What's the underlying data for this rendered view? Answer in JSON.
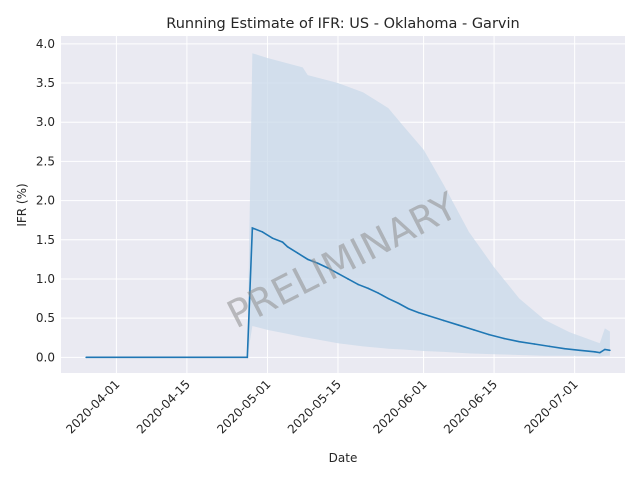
{
  "chart_data": {
    "type": "line",
    "title": "Running Estimate of IFR: US - Oklahoma - Garvin",
    "xlabel": "Date",
    "ylabel": "IFR (%)",
    "x_range": [
      "2020-03-21",
      "2020-07-11"
    ],
    "ylim": [
      -0.2,
      4.1
    ],
    "grid": true,
    "watermark": "PRELIMINARY",
    "x_ticks": [
      "2020-04-01",
      "2020-04-15",
      "2020-05-01",
      "2020-05-15",
      "2020-06-01",
      "2020-06-15",
      "2020-07-01"
    ],
    "y_ticks": [
      "0.0",
      "0.5",
      "1.0",
      "1.5",
      "2.0",
      "2.5",
      "3.0",
      "3.5",
      "4.0"
    ],
    "colors": {
      "background": "#eaeaf2",
      "grid": "#ffffff",
      "line": "#1f77b4",
      "band": "#c9d9ea"
    },
    "series": [
      {
        "values": [
          {
            "x": "2020-03-26",
            "y": 0.0
          },
          {
            "x": "2020-04-27",
            "y": 0.0
          },
          {
            "x": "2020-04-28",
            "y": 1.65
          },
          {
            "x": "2020-04-30",
            "y": 1.6
          },
          {
            "x": "2020-05-02",
            "y": 1.52
          },
          {
            "x": "2020-05-04",
            "y": 1.47
          },
          {
            "x": "2020-05-05",
            "y": 1.41
          },
          {
            "x": "2020-05-07",
            "y": 1.33
          },
          {
            "x": "2020-05-09",
            "y": 1.25
          },
          {
            "x": "2020-05-11",
            "y": 1.2
          },
          {
            "x": "2020-05-13",
            "y": 1.14
          },
          {
            "x": "2020-05-15",
            "y": 1.07
          },
          {
            "x": "2020-05-17",
            "y": 1.0
          },
          {
            "x": "2020-05-19",
            "y": 0.93
          },
          {
            "x": "2020-05-21",
            "y": 0.88
          },
          {
            "x": "2020-05-23",
            "y": 0.82
          },
          {
            "x": "2020-05-25",
            "y": 0.75
          },
          {
            "x": "2020-05-27",
            "y": 0.69
          },
          {
            "x": "2020-05-29",
            "y": 0.62
          },
          {
            "x": "2020-05-31",
            "y": 0.57
          },
          {
            "x": "2020-06-02",
            "y": 0.53
          },
          {
            "x": "2020-06-05",
            "y": 0.47
          },
          {
            "x": "2020-06-08",
            "y": 0.41
          },
          {
            "x": "2020-06-11",
            "y": 0.35
          },
          {
            "x": "2020-06-14",
            "y": 0.29
          },
          {
            "x": "2020-06-17",
            "y": 0.24
          },
          {
            "x": "2020-06-20",
            "y": 0.2
          },
          {
            "x": "2020-06-23",
            "y": 0.17
          },
          {
            "x": "2020-06-26",
            "y": 0.14
          },
          {
            "x": "2020-06-29",
            "y": 0.11
          },
          {
            "x": "2020-07-02",
            "y": 0.09
          },
          {
            "x": "2020-07-05",
            "y": 0.07
          },
          {
            "x": "2020-07-06",
            "y": 0.06
          },
          {
            "x": "2020-07-07",
            "y": 0.1
          },
          {
            "x": "2020-07-08",
            "y": 0.09
          }
        ]
      }
    ],
    "band": [
      {
        "x": "2020-04-27",
        "low": 0.0,
        "high": 0.0
      },
      {
        "x": "2020-04-28",
        "low": 0.4,
        "high": 3.88
      },
      {
        "x": "2020-05-01",
        "low": 0.35,
        "high": 3.82
      },
      {
        "x": "2020-05-05",
        "low": 0.3,
        "high": 3.75
      },
      {
        "x": "2020-05-08",
        "low": 0.26,
        "high": 3.7
      },
      {
        "x": "2020-05-09",
        "low": 0.25,
        "high": 3.6
      },
      {
        "x": "2020-05-15",
        "low": 0.18,
        "high": 3.5
      },
      {
        "x": "2020-05-20",
        "low": 0.14,
        "high": 3.38
      },
      {
        "x": "2020-05-25",
        "low": 0.11,
        "high": 3.18
      },
      {
        "x": "2020-05-28",
        "low": 0.1,
        "high": 2.95
      },
      {
        "x": "2020-06-01",
        "low": 0.08,
        "high": 2.65
      },
      {
        "x": "2020-06-05",
        "low": 0.07,
        "high": 2.2
      },
      {
        "x": "2020-06-10",
        "low": 0.05,
        "high": 1.6
      },
      {
        "x": "2020-06-15",
        "low": 0.04,
        "high": 1.15
      },
      {
        "x": "2020-06-20",
        "low": 0.03,
        "high": 0.75
      },
      {
        "x": "2020-06-25",
        "low": 0.02,
        "high": 0.48
      },
      {
        "x": "2020-06-30",
        "low": 0.02,
        "high": 0.32
      },
      {
        "x": "2020-07-06",
        "low": 0.01,
        "high": 0.18
      },
      {
        "x": "2020-07-07",
        "low": 0.02,
        "high": 0.37
      },
      {
        "x": "2020-07-08",
        "low": 0.02,
        "high": 0.33
      }
    ]
  }
}
